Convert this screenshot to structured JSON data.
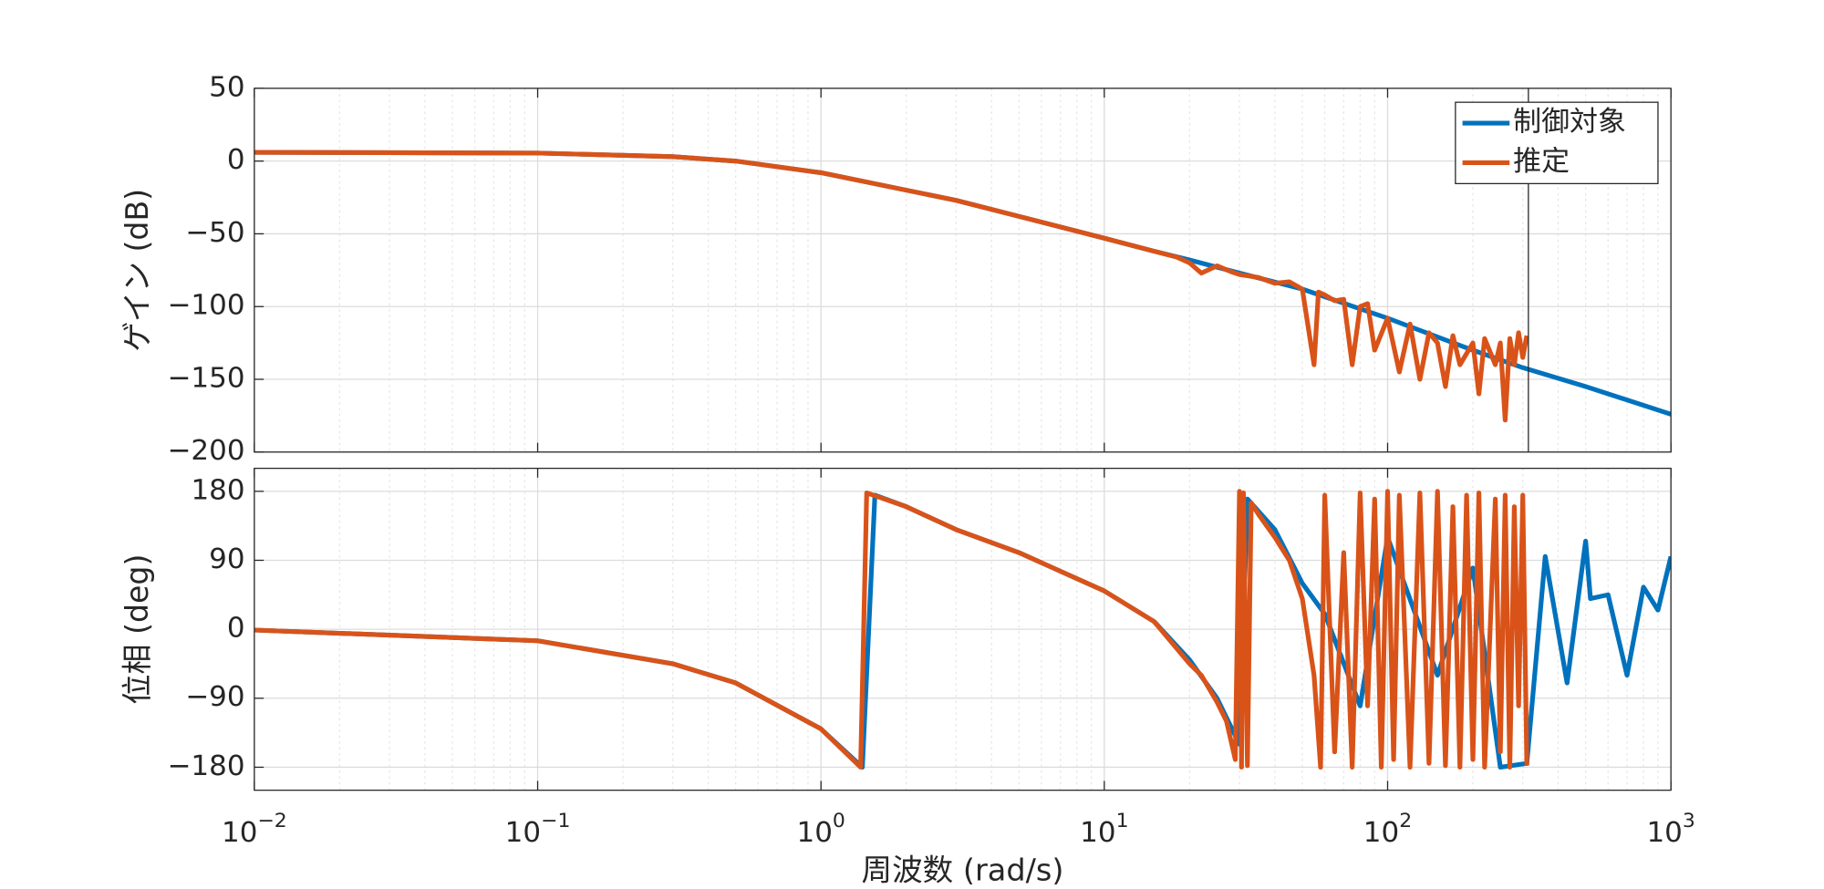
{
  "chart_data": [
    {
      "type": "line",
      "ylabel": "ゲイン (dB)",
      "xlim": [
        0.01,
        1000
      ],
      "log_x": true,
      "ylim": [
        -200,
        50
      ],
      "yticks": [
        {
          "value": -200,
          "label": "−200"
        },
        {
          "value": -150,
          "label": "−150"
        },
        {
          "value": -100,
          "label": "−100"
        },
        {
          "value": -50,
          "label": "−50"
        },
        0,
        50
      ],
      "grid": true,
      "legend": "northeast",
      "vline_x": 314,
      "series": [
        {
          "name": "制御対象",
          "color": "#0072BD",
          "x": [
            0.01,
            0.1,
            0.3,
            0.5,
            1,
            2,
            3,
            5,
            10,
            15,
            20,
            30,
            50,
            100,
            200,
            300,
            500,
            1000
          ],
          "values": [
            6,
            5.5,
            3,
            0,
            -8,
            -20,
            -27,
            -38,
            -53,
            -62,
            -68,
            -77,
            -88,
            -108,
            -130,
            -142,
            -155,
            -174
          ]
        },
        {
          "name": "推定",
          "color": "#D95319",
          "x": [
            0.01,
            0.1,
            0.3,
            0.5,
            1,
            2,
            3,
            5,
            10,
            15,
            18,
            20,
            22,
            25,
            28,
            30,
            35,
            40,
            45,
            50,
            55,
            57,
            60,
            65,
            70,
            75,
            80,
            85,
            90,
            100,
            110,
            120,
            130,
            140,
            150,
            160,
            170,
            180,
            200,
            210,
            220,
            240,
            250,
            260,
            270,
            280,
            290,
            300,
            310
          ],
          "values": [
            6,
            5.5,
            3,
            0,
            -8,
            -20,
            -27,
            -38,
            -53,
            -62,
            -66,
            -70,
            -77,
            -72,
            -76,
            -78,
            -80,
            -84,
            -83,
            -88,
            -140,
            -90,
            -92,
            -96,
            -95,
            -140,
            -100,
            -98,
            -130,
            -108,
            -145,
            -112,
            -150,
            -118,
            -125,
            -155,
            -120,
            -140,
            -125,
            -160,
            -122,
            -140,
            -125,
            -178,
            -122,
            -140,
            -118,
            -135,
            -120
          ]
        }
      ]
    },
    {
      "type": "line",
      "ylabel": "位相 (deg)",
      "xlabel": "周波数 (rad/s)",
      "xlim": [
        0.01,
        1000
      ],
      "log_x": true,
      "xticks": [
        {
          "value": 0.01,
          "label": "10−2"
        },
        {
          "value": 0.1,
          "label": "10−1"
        },
        {
          "value": 1,
          "label": "100"
        },
        {
          "value": 10,
          "label": "101"
        },
        {
          "value": 100,
          "label": "102"
        },
        {
          "value": 1000,
          "label": "103"
        }
      ],
      "ylim": [
        -210,
        210
      ],
      "yticks": [
        {
          "value": -180,
          "label": "−180"
        },
        {
          "value": -90,
          "label": "−90"
        },
        0,
        90,
        180
      ],
      "grid": true,
      "series": [
        {
          "color": "#0072BD",
          "x": [
            0.01,
            0.1,
            0.3,
            0.5,
            1,
            1.4,
            1.55,
            2,
            3,
            5,
            10,
            15,
            20,
            25,
            30,
            32,
            40,
            50,
            60,
            80,
            100,
            150,
            200,
            250,
            310,
            360,
            430,
            500,
            520,
            600,
            700,
            800,
            900,
            1000
          ],
          "values": [
            -1,
            -15,
            -45,
            -70,
            -130,
            -180,
            175,
            160,
            130,
            100,
            50,
            10,
            -40,
            -90,
            -150,
            170,
            130,
            60,
            20,
            -100,
            120,
            -60,
            80,
            -180,
            -175,
            95,
            -70,
            115,
            40,
            45,
            -60,
            55,
            25,
            95
          ]
        },
        {
          "color": "#D95319",
          "x": [
            0.01,
            0.1,
            0.3,
            0.5,
            1,
            1.38,
            1.45,
            2,
            3,
            5,
            10,
            15,
            20,
            22,
            25,
            27,
            29,
            30,
            30.5,
            31,
            32,
            33,
            35,
            40,
            45,
            50,
            55,
            58,
            60,
            65,
            70,
            75,
            80,
            85,
            90,
            95,
            100,
            105,
            110,
            120,
            130,
            140,
            150,
            160,
            170,
            180,
            190,
            200,
            210,
            220,
            240,
            250,
            260,
            270,
            280,
            290,
            300,
            310
          ],
          "values": [
            -1,
            -15,
            -45,
            -70,
            -130,
            -180,
            178,
            160,
            130,
            100,
            50,
            10,
            -45,
            -60,
            -95,
            -120,
            -170,
            180,
            -180,
            178,
            -178,
            165,
            150,
            120,
            90,
            40,
            -60,
            -180,
            175,
            -160,
            100,
            -180,
            178,
            -100,
            170,
            -180,
            180,
            -170,
            175,
            -180,
            178,
            -175,
            180,
            -178,
            160,
            -180,
            175,
            -170,
            178,
            -180,
            170,
            -160,
            175,
            -180,
            160,
            -100,
            175,
            -178
          ]
        }
      ]
    }
  ]
}
